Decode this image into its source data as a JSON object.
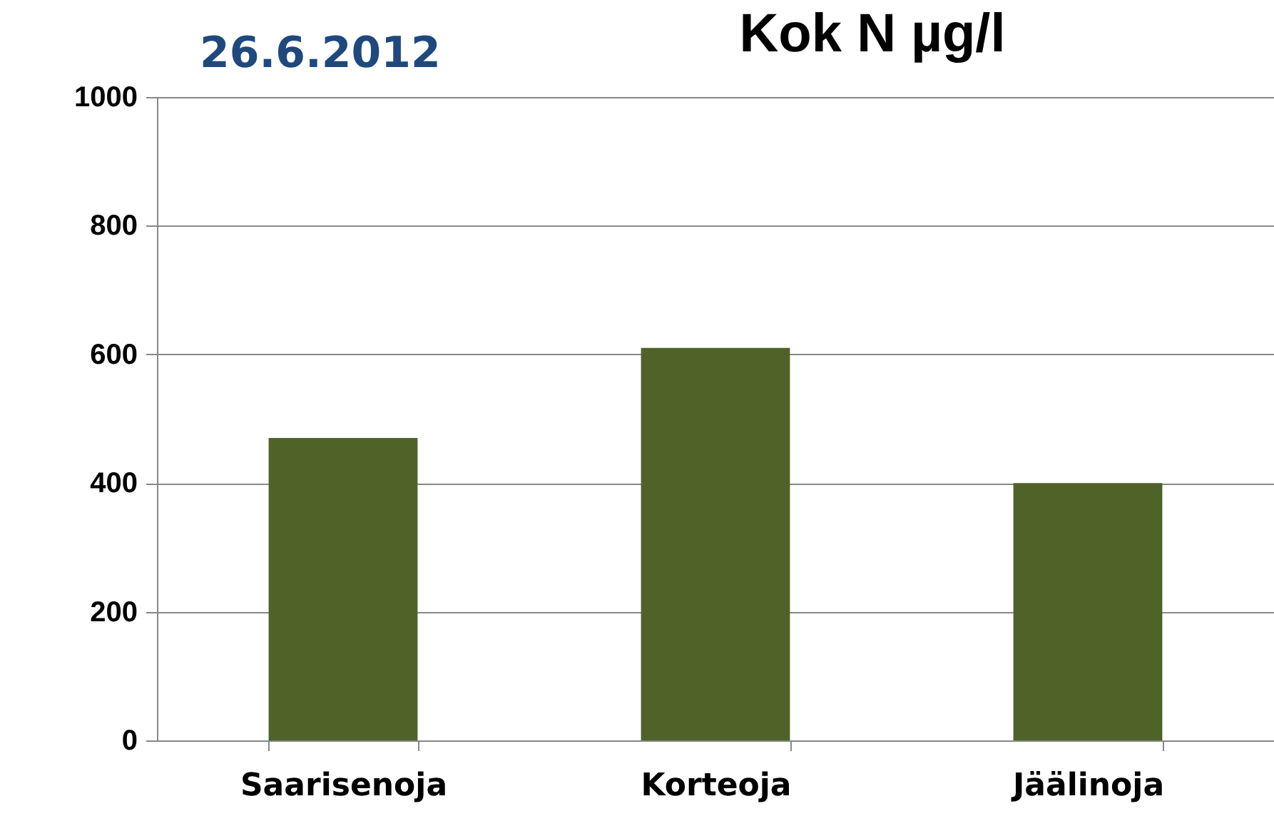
{
  "chart_data": {
    "type": "bar",
    "title": "Kok N µg/l",
    "subtitle": "26.6.2012",
    "categories": [
      "Saarisenoja",
      "Korteoja",
      "Jäälinoja"
    ],
    "values": [
      470,
      610,
      400
    ],
    "color": "#4f6228",
    "ylim": [
      0,
      1000
    ],
    "yticks": [
      0,
      200,
      400,
      600,
      800,
      1000
    ],
    "grid": "y"
  }
}
